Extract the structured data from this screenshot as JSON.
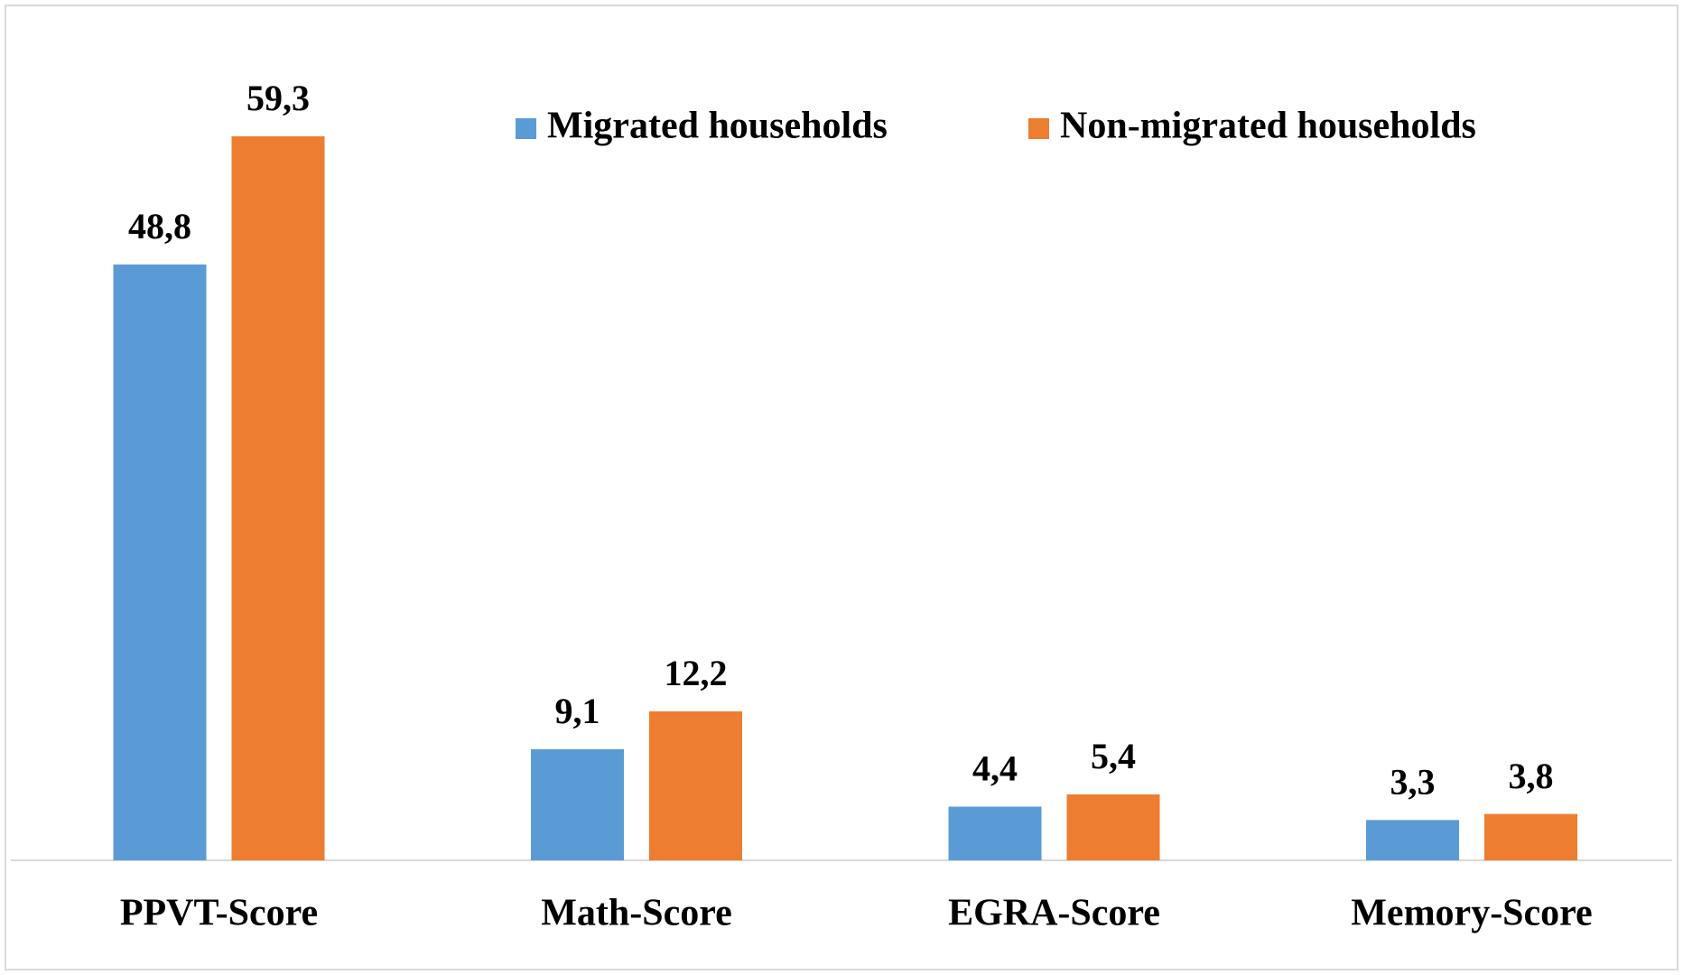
{
  "chart_data": {
    "type": "bar",
    "categories": [
      "PPVT-Score",
      "Math-Score",
      "EGRA-Score",
      "Memory-Score"
    ],
    "series": [
      {
        "name": "Migrated households",
        "color": "#5b9bd5",
        "values": [
          48.8,
          9.1,
          4.4,
          3.3
        ],
        "value_labels": [
          "48,8",
          "9,1",
          "4,4",
          "3,3"
        ]
      },
      {
        "name": "Non-migrated households",
        "color": "#ed7d31",
        "values": [
          59.3,
          12.2,
          5.4,
          3.8
        ],
        "value_labels": [
          "59,3",
          "12,2",
          "5,4",
          "3,8"
        ]
      }
    ],
    "legend": "top-right"
  }
}
